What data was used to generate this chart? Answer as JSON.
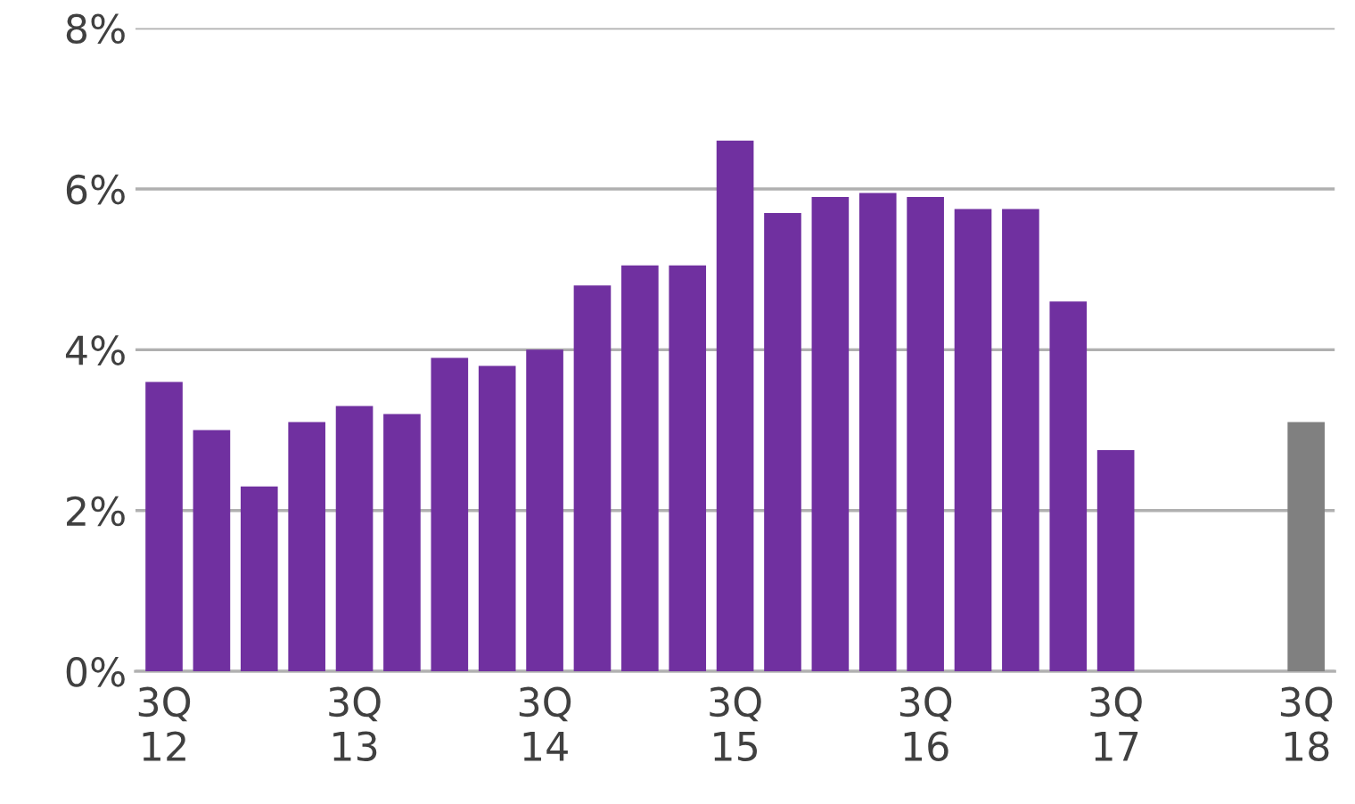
{
  "chart_data": {
    "type": "bar",
    "categories": [
      "3Q\n12",
      null,
      null,
      null,
      "3Q\n13",
      null,
      null,
      null,
      "3Q\n14",
      null,
      null,
      null,
      "3Q\n15",
      null,
      null,
      null,
      "3Q\n16",
      null,
      null,
      null,
      "3Q\n17",
      null,
      null,
      null,
      "3Q\n18"
    ],
    "values": [
      3.6,
      3.0,
      2.3,
      3.1,
      3.3,
      3.2,
      3.9,
      3.8,
      4.0,
      4.8,
      5.05,
      5.05,
      6.6,
      5.7,
      5.9,
      5.95,
      5.9,
      5.75,
      5.75,
      4.6,
      2.75,
      null,
      null,
      null,
      3.1
    ],
    "colors": [
      "#7030a0",
      "#7030a0",
      "#7030a0",
      "#7030a0",
      "#7030a0",
      "#7030a0",
      "#7030a0",
      "#7030a0",
      "#7030a0",
      "#7030a0",
      "#7030a0",
      "#7030a0",
      "#7030a0",
      "#7030a0",
      "#7030a0",
      "#7030a0",
      "#7030a0",
      "#7030a0",
      "#7030a0",
      "#7030a0",
      "#7030a0",
      "#7030a0",
      "#7030a0",
      "#7030a0",
      "#808080"
    ],
    "ylim": [
      0,
      8
    ],
    "yticks": [
      {
        "value": 0,
        "label": "0%"
      },
      {
        "value": 2,
        "label": "2%"
      },
      {
        "value": 4,
        "label": "4%"
      },
      {
        "value": 6,
        "label": "6%"
      },
      {
        "value": 8,
        "label": "8%"
      }
    ],
    "grid": "y",
    "legend": false
  }
}
